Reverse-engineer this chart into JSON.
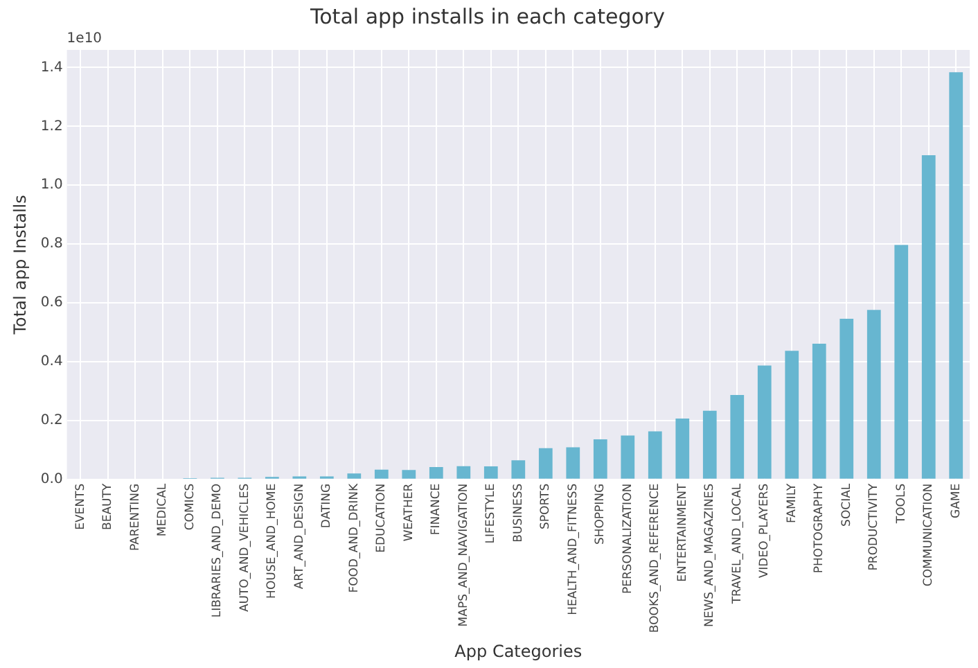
{
  "chart_data": {
    "type": "bar",
    "title": "Total app installs in each category",
    "xlabel": "App Categories",
    "ylabel": "Total app Installs",
    "categories": [
      "EVENTS",
      "BEAUTY",
      "PARENTING",
      "MEDICAL",
      "COMICS",
      "LIBRARIES_AND_DEMO",
      "AUTO_AND_VEHICLES",
      "HOUSE_AND_HOME",
      "ART_AND_DESIGN",
      "DATING",
      "FOOD_AND_DRINK",
      "EDUCATION",
      "WEATHER",
      "FINANCE",
      "MAPS_AND_NAVIGATION",
      "LIFESTYLE",
      "BUSINESS",
      "SPORTS",
      "HEALTH_AND_FITNESS",
      "SHOPPING",
      "PERSONALIZATION",
      "BOOKS_AND_REFERENCE",
      "ENTERTAINMENT",
      "NEWS_AND_MAGAZINES",
      "TRAVEL_AND_LOCAL",
      "VIDEO_PLAYERS",
      "FAMILY",
      "PHOTOGRAPHY",
      "SOCIAL",
      "PRODUCTIVITY",
      "TOOLS",
      "COMMUNICATION",
      "GAME"
    ],
    "values": [
      0,
      0,
      0,
      0,
      0.004,
      0.005,
      0.005,
      0.008,
      0.01,
      0.01,
      0.02,
      0.033,
      0.032,
      0.042,
      0.045,
      0.044,
      0.065,
      0.106,
      0.109,
      0.136,
      0.149,
      0.163,
      0.207,
      0.233,
      0.287,
      0.387,
      0.437,
      0.461,
      0.546,
      0.576,
      0.797,
      1.102,
      1.384
    ],
    "color": "#67b6d0",
    "ylim": [
      0,
      1.46
    ],
    "yticks": [
      {
        "value": 0,
        "label": "0.0"
      },
      {
        "value": 0.2,
        "label": "0.2"
      },
      {
        "value": 0.4,
        "label": "0.4"
      },
      {
        "value": 0.6,
        "label": "0.6"
      },
      {
        "value": 0.8,
        "label": "0.8"
      },
      {
        "value": 1.0,
        "label": "1.0"
      },
      {
        "value": 1.2,
        "label": "1.2"
      },
      {
        "value": 1.4,
        "label": "1.4"
      }
    ],
    "annotations": [
      "1e10"
    ],
    "grid": true
  }
}
